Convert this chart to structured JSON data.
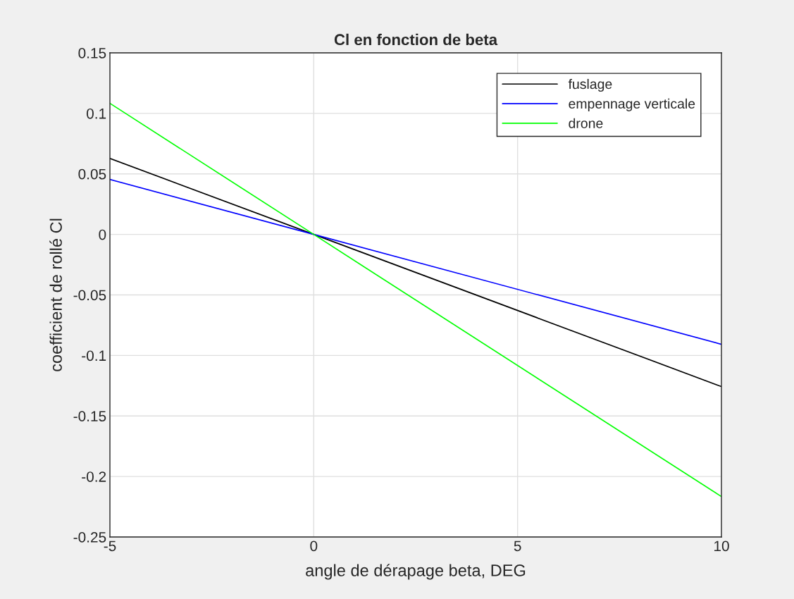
{
  "chart_data": {
    "type": "line",
    "title": "Cl en fonction de beta",
    "xlabel": "angle de dérapage beta, DEG",
    "ylabel": "coefficient de rollé Cl",
    "x": [
      -5,
      0,
      10
    ],
    "series": [
      {
        "name": "fuslage",
        "color": "#000000",
        "values": [
          0.0628,
          0,
          -0.1257
        ]
      },
      {
        "name": "empennage verticale",
        "color": "#0000ff",
        "values": [
          0.0454,
          0,
          -0.0908
        ]
      },
      {
        "name": "drone",
        "color": "#00ff00",
        "values": [
          0.1083,
          0,
          -0.2166
        ]
      }
    ],
    "xlim": [
      -5,
      10
    ],
    "xticks": [
      -5,
      0,
      5,
      10
    ],
    "ylim": [
      -0.25,
      0.15
    ],
    "yticks": [
      -0.25,
      -0.2,
      -0.15,
      -0.1,
      -0.05,
      0,
      0.05,
      0.1,
      0.15
    ],
    "grid": true,
    "legend": "top right",
    "marker": "none",
    "line_style": "solid"
  }
}
